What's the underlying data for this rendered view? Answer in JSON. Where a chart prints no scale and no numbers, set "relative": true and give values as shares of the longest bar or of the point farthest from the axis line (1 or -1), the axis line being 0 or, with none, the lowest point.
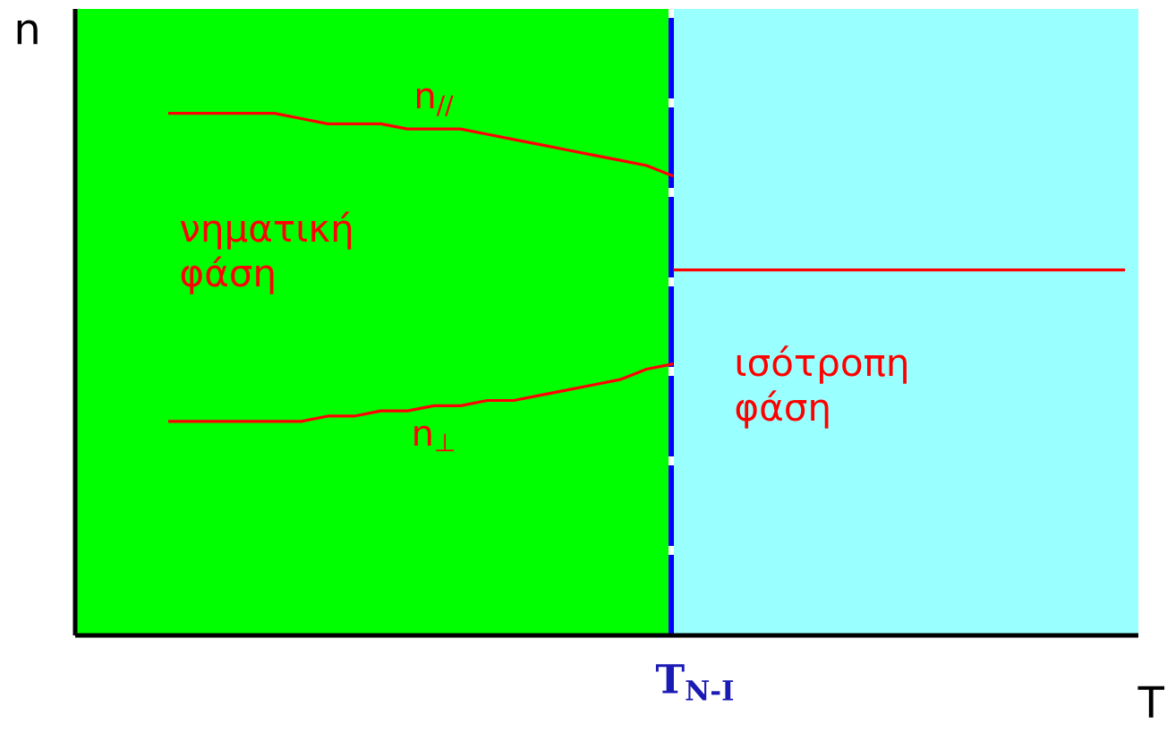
{
  "chart_data": {
    "type": "line",
    "relative": true,
    "xlabel": "T",
    "ylabel": "n",
    "categories": [
      null,
      null,
      null,
      null,
      null,
      null,
      null,
      null,
      null,
      null,
      null,
      null,
      null,
      null,
      null,
      null,
      null,
      null,
      null,
      null,
      null,
      null,
      null,
      null,
      null,
      null,
      null,
      null,
      null,
      null,
      null,
      null,
      null,
      null,
      null,
      null,
      null,
      null,
      null,
      null
    ],
    "series": [
      {
        "name": "n$_{//}$",
        "color": "#ff0000",
        "values": [
          null,
          null,
          null,
          1,
          1,
          1,
          1,
          1,
          0.99,
          0.98,
          0.98,
          0.98,
          0.97,
          0.97,
          0.97,
          0.96,
          0.95,
          0.94,
          0.93,
          0.92,
          0.91,
          0.9,
          0.88,
          null,
          null,
          null,
          null,
          null,
          null,
          null,
          null,
          null,
          null,
          null,
          null,
          null,
          null,
          null,
          null,
          null
        ]
      },
      {
        "name": "n$_{⊥}$",
        "color": "#ff0000",
        "values": [
          null,
          null,
          null,
          0.41,
          0.41,
          0.41,
          0.41,
          0.41,
          0.41,
          0.42,
          0.42,
          0.43,
          0.43,
          0.44,
          0.44,
          0.45,
          0.45,
          0.46,
          0.47,
          0.48,
          0.49,
          0.51,
          0.52,
          null,
          null,
          null,
          null,
          null,
          null,
          null,
          null,
          null,
          null,
          null,
          null,
          null,
          null,
          null,
          null,
          null
        ]
      },
      {
        "color": "#ff0000",
        "values": [
          null,
          null,
          null,
          null,
          null,
          null,
          null,
          null,
          null,
          null,
          null,
          null,
          null,
          null,
          null,
          null,
          null,
          null,
          null,
          null,
          null,
          null,
          0.7,
          0.7,
          0.7,
          0.7,
          0.7,
          0.7,
          0.7,
          0.7,
          0.7,
          0.7,
          0.7,
          0.7,
          0.7,
          0.7,
          0.7,
          0.7,
          0.7,
          0.7
        ]
      }
    ],
    "annotations": [
      "νηματική φάση",
      "ισότροπη φάση",
      "T$_{N-I}$"
    ],
    "legend": false,
    "marker": "none",
    "line_style": "solid"
  }
}
